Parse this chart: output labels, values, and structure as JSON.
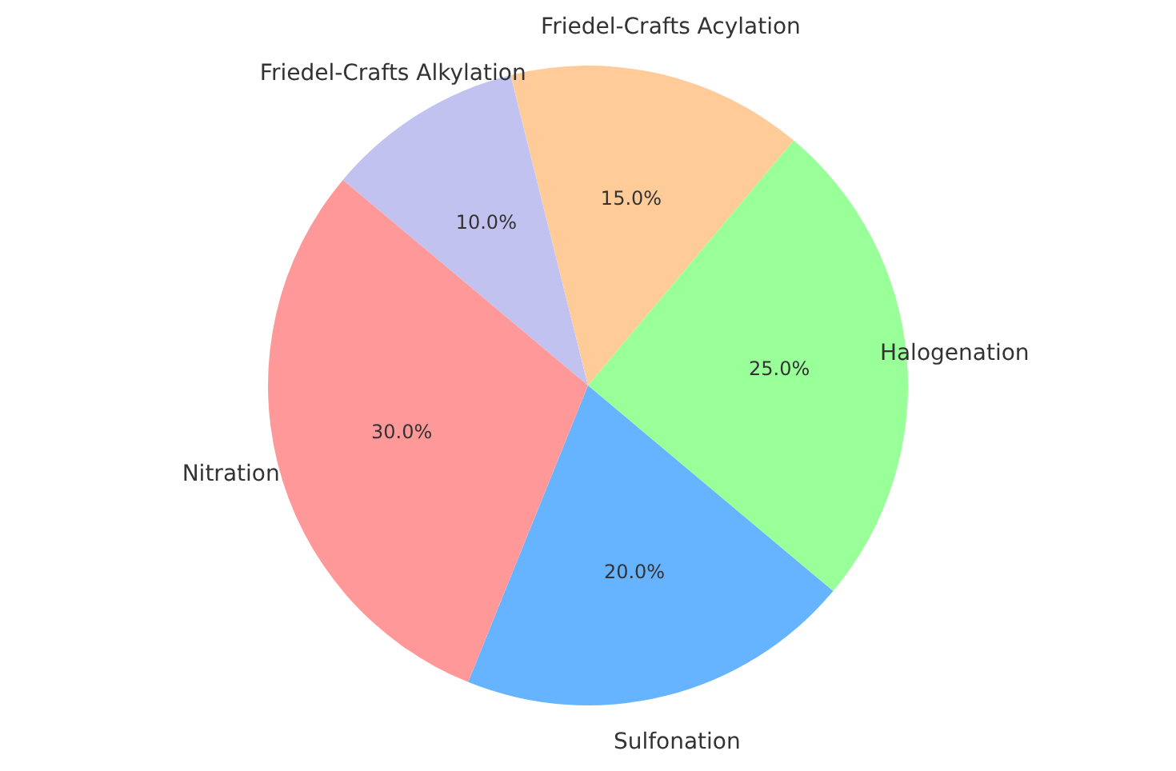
{
  "chart_data": {
    "type": "pie",
    "categories": [
      "Friedel-Crafts Alkylation",
      "Friedel-Crafts Acylation",
      "Halogenation",
      "Sulfonation",
      "Nitration"
    ],
    "values": [
      10,
      15,
      25,
      20,
      30
    ],
    "colors": [
      "#c2c2f0",
      "#ffcc99",
      "#99ff99",
      "#66b3ff",
      "#ff9999"
    ],
    "value_labels": [
      "10.0%",
      "15.0%",
      "25.0%",
      "20.0%",
      "30.0%"
    ]
  }
}
